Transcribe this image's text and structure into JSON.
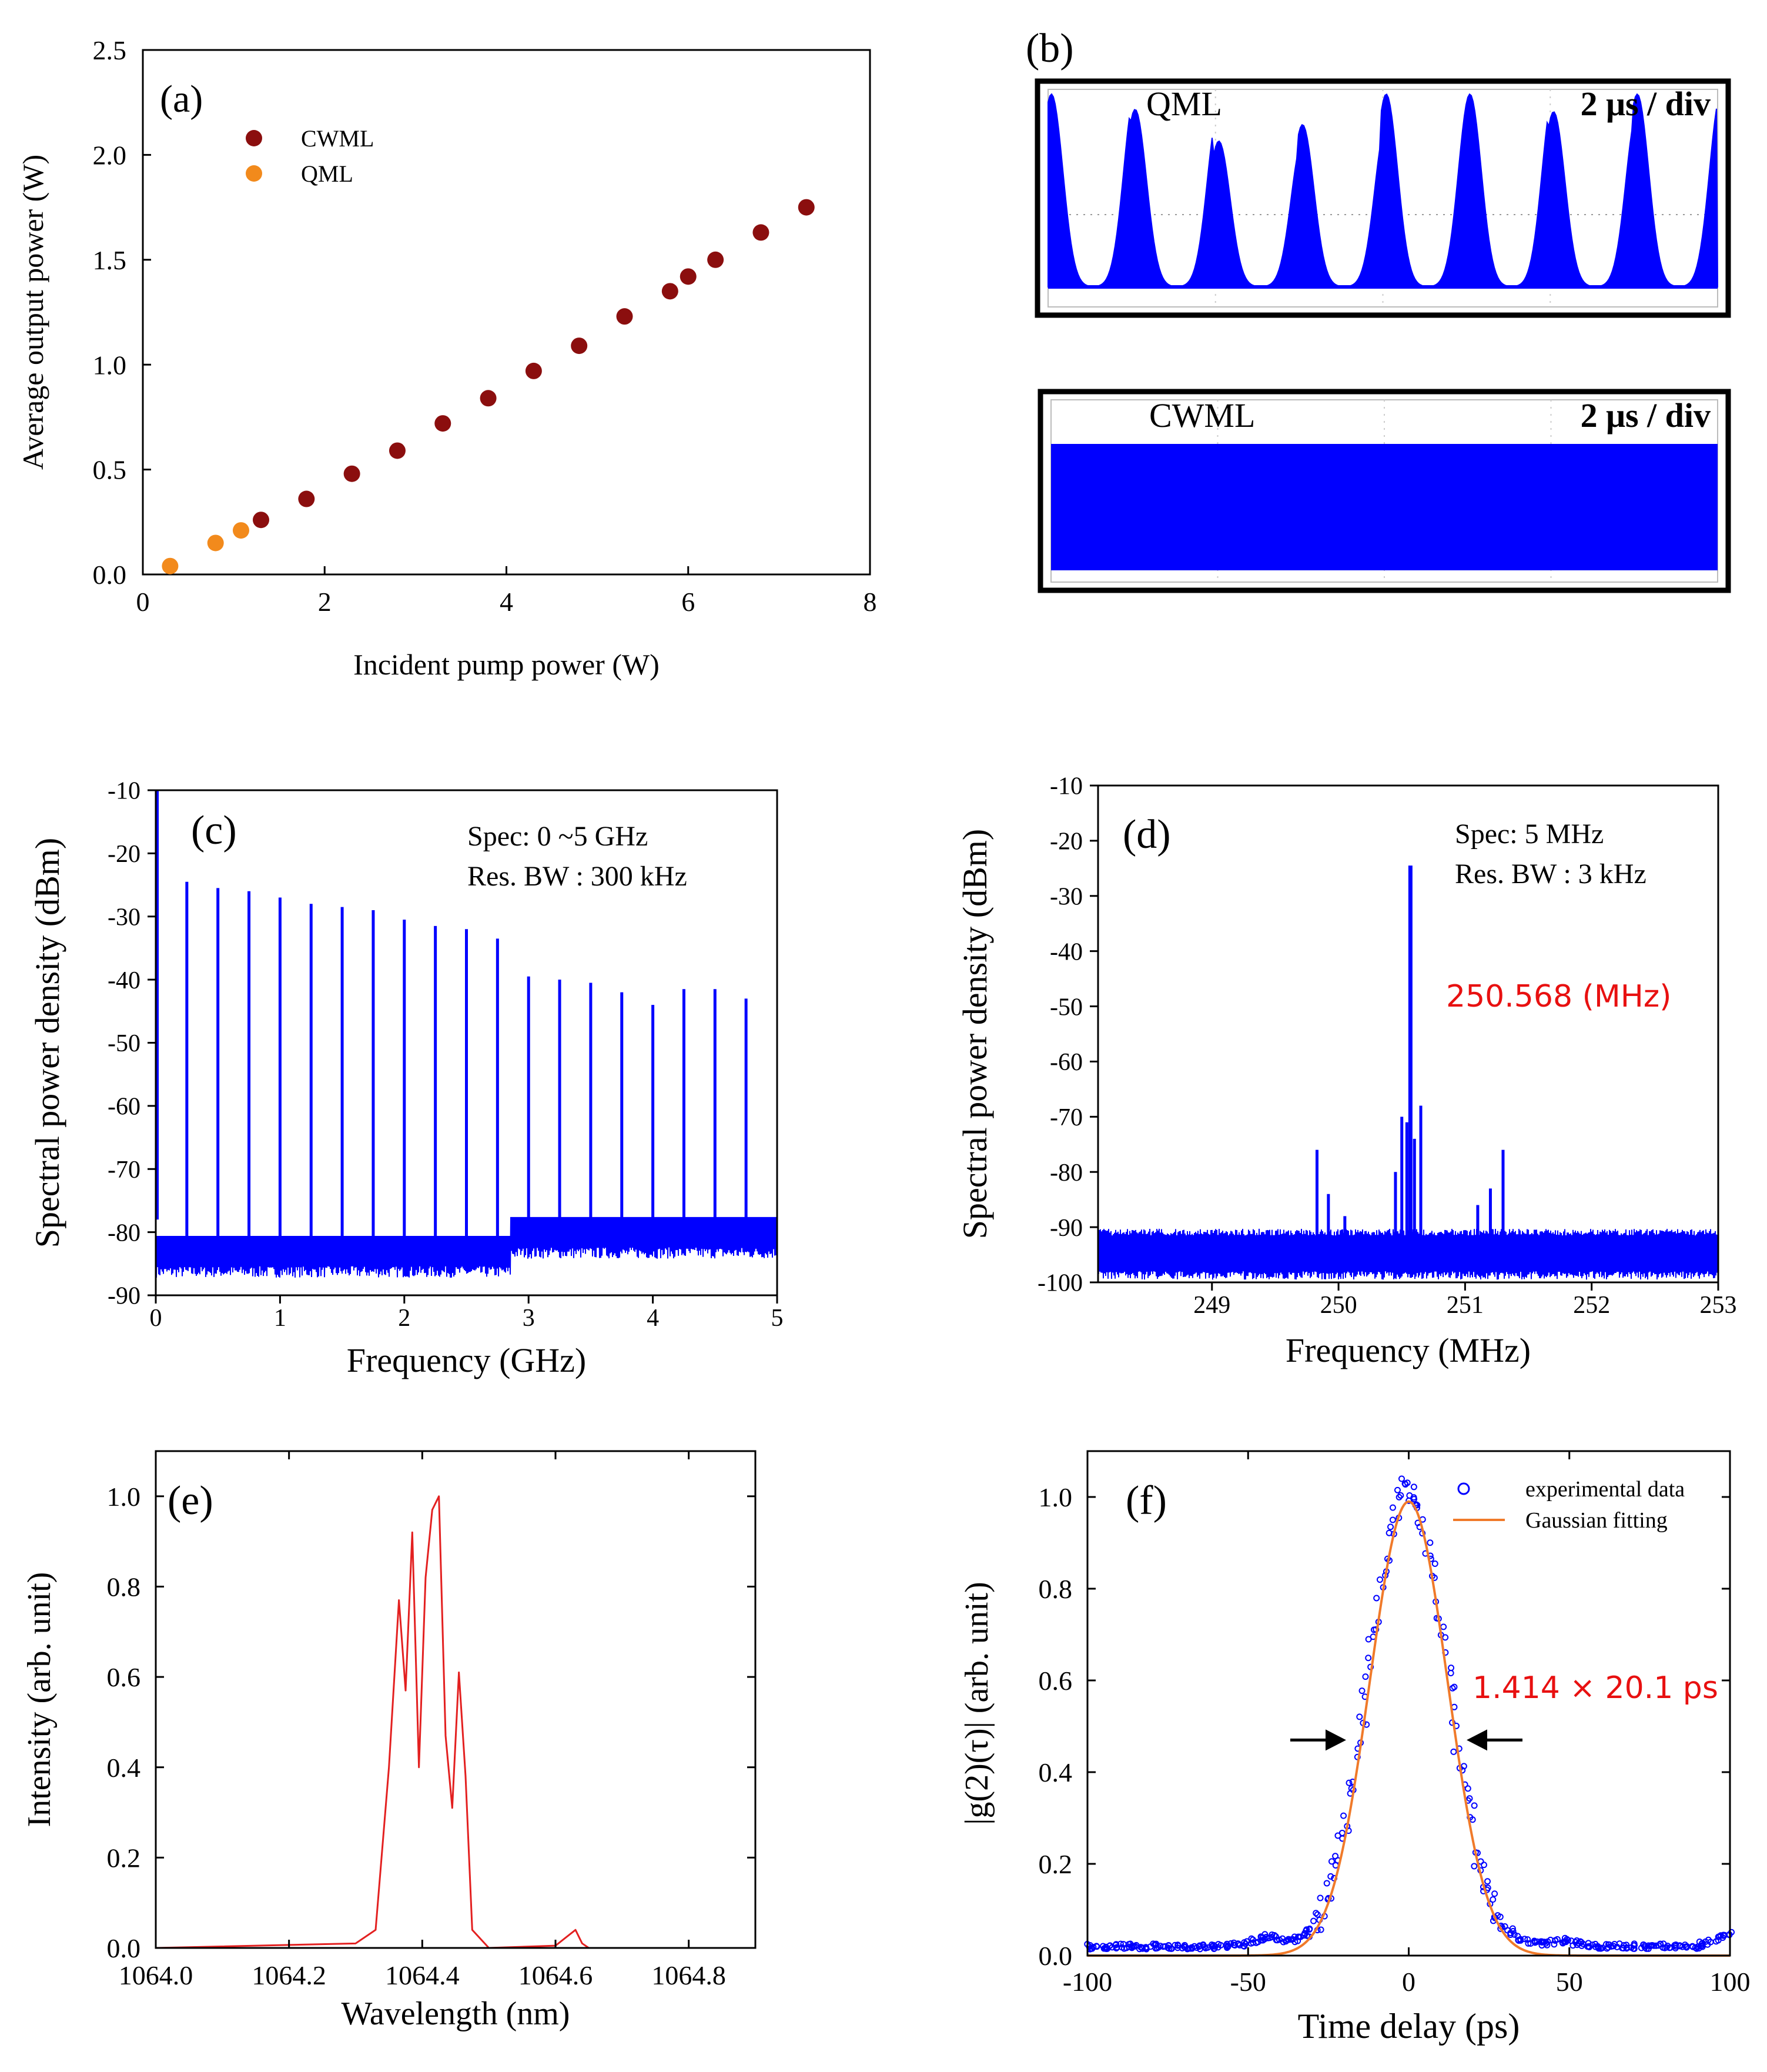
{
  "colors": {
    "cwml": "#8b0e0e",
    "qml": "#f28a1c",
    "trace": "#0000ff",
    "spectrum": "#e32020",
    "fit": "#f07a2a",
    "annotation": "#e81010",
    "frame": "#000000"
  },
  "chart_data": [
    {
      "id": "a",
      "type": "scatter",
      "panel_label": "(a)",
      "xlabel": "Incident pump power (W)",
      "ylabel": "Average output power (W)",
      "xlim": [
        0,
        8
      ],
      "ylim": [
        0,
        2.5
      ],
      "xticks": [
        "0",
        "2",
        "4",
        "6",
        "8"
      ],
      "yticks": [
        "0.0",
        "0.5",
        "1.0",
        "1.5",
        "2.0",
        "2.5"
      ],
      "legend_position": "top-left",
      "series": [
        {
          "name": "CWML",
          "x": [
            1.3,
            1.8,
            2.3,
            2.8,
            3.3,
            3.8,
            4.3,
            4.8,
            5.3,
            5.8,
            6.0,
            6.3,
            6.8,
            7.3
          ],
          "y": [
            0.26,
            0.36,
            0.48,
            0.59,
            0.72,
            0.84,
            0.97,
            1.09,
            1.23,
            1.35,
            1.42,
            1.5,
            1.63,
            1.75
          ]
        },
        {
          "name": "QML",
          "x": [
            0.3,
            0.8,
            1.08
          ],
          "y": [
            0.04,
            0.15,
            0.21
          ]
        }
      ]
    },
    {
      "id": "b",
      "type": "oscilloscope",
      "panel_label": "(b)",
      "traces": [
        {
          "name": "QML",
          "scale": "2 μs / div",
          "pulse_count": 8
        },
        {
          "name": "CWML",
          "scale": "2 μs / div"
        }
      ]
    },
    {
      "id": "c",
      "type": "line",
      "panel_label": "(c)",
      "xlabel": "Frequency (GHz)",
      "ylabel": "Spectral power density (dBm)",
      "xlim": [
        0,
        5
      ],
      "ylim": [
        -90,
        -10
      ],
      "xticks": [
        "0",
        "1",
        "2",
        "3",
        "4",
        "5"
      ],
      "yticks": [
        "-10",
        "-20",
        "-30",
        "-40",
        "-50",
        "-60",
        "-70",
        "-80",
        "-90"
      ],
      "annotations": [
        "Spec:  0 ~5 GHz",
        "Res. BW : 300 kHz"
      ],
      "peaks_x": [
        0.25,
        0.5,
        0.75,
        1.0,
        1.25,
        1.5,
        1.75,
        2.0,
        2.25,
        2.5,
        2.75,
        3.0,
        3.25,
        3.5,
        3.75,
        4.0,
        4.25,
        4.5,
        4.75
      ],
      "peaks_y": [
        -24.5,
        -25.5,
        -26,
        -27,
        -28,
        -28.5,
        -29,
        -30.5,
        -31.5,
        -32,
        -33.5,
        -39.5,
        -40,
        -40.5,
        -42,
        -44,
        -41.5,
        -41.5,
        -43
      ],
      "noise_floor_low": -84,
      "noise_floor_high": -81,
      "floor_step_x": 2.85
    },
    {
      "id": "d",
      "type": "line",
      "panel_label": "(d)",
      "xlabel": "Frequency (MHz)",
      "ylabel": "Spectral power density (dBm)",
      "xlim": [
        248.1,
        253
      ],
      "ylim": [
        -100,
        -10
      ],
      "xticks": [
        "249",
        "250",
        "251",
        "252",
        "253"
      ],
      "yticks": [
        "-10",
        "-20",
        "-30",
        "-40",
        "-50",
        "-60",
        "-70",
        "-80",
        "-90",
        "-100"
      ],
      "annotations": [
        "Spec:  5 MHz",
        "Res. BW : 3 kHz"
      ],
      "highlight": "250.568 (MHz)",
      "peaks_x": [
        249.83,
        249.92,
        250.05,
        250.45,
        250.5,
        250.54,
        250.568,
        250.6,
        250.65,
        251.1,
        251.2,
        251.3
      ],
      "peaks_y": [
        -76,
        -84,
        -88,
        -80,
        -70,
        -71,
        -24.5,
        -74,
        -68,
        -86,
        -83,
        -76
      ],
      "noise_floor": -95
    },
    {
      "id": "e",
      "type": "line",
      "panel_label": "(e)",
      "xlabel": "Wavelength (nm)",
      "ylabel": "Intensity (arb. unit)",
      "xlim": [
        1064.0,
        1064.9
      ],
      "ylim": [
        0,
        1.1
      ],
      "xticks": [
        "1064.0",
        "1064.2",
        "1064.4",
        "1064.6",
        "1064.8"
      ],
      "yticks": [
        "0.0",
        "0.2",
        "0.4",
        "0.6",
        "0.8",
        "1.0"
      ],
      "x": [
        1064.0,
        1064.3,
        1064.33,
        1064.35,
        1064.365,
        1064.375,
        1064.385,
        1064.395,
        1064.405,
        1064.415,
        1064.425,
        1064.435,
        1064.445,
        1064.455,
        1064.465,
        1064.475,
        1064.5,
        1064.6,
        1064.63,
        1064.64,
        1064.65,
        1064.9
      ],
      "y": [
        0.0,
        0.01,
        0.04,
        0.4,
        0.77,
        0.57,
        0.92,
        0.4,
        0.82,
        0.97,
        1.0,
        0.47,
        0.31,
        0.61,
        0.38,
        0.04,
        0.0,
        0.005,
        0.04,
        0.01,
        0.0,
        0.0
      ]
    },
    {
      "id": "f",
      "type": "scatter",
      "panel_label": "(f)",
      "xlabel": "Time delay (ps)",
      "ylabel": "|g(2)(τ)| (arb. unit)",
      "xlim": [
        -100,
        100
      ],
      "ylim": [
        0,
        1.1
      ],
      "xticks": [
        "-100",
        "-50",
        "0",
        "50",
        "100"
      ],
      "yticks": [
        "0.0",
        "0.2",
        "0.4",
        "0.6",
        "0.8",
        "1.0"
      ],
      "legend_position": "top-right",
      "series": [
        {
          "name": "experimental data",
          "peak": 1.0,
          "fwhm_ps": 28.4,
          "baseline": 0.02
        },
        {
          "name": "Gaussian fitting",
          "peak": 0.99,
          "fwhm_ps": 28.4
        }
      ],
      "annotation": "1.414 × 20.1 ps"
    }
  ]
}
